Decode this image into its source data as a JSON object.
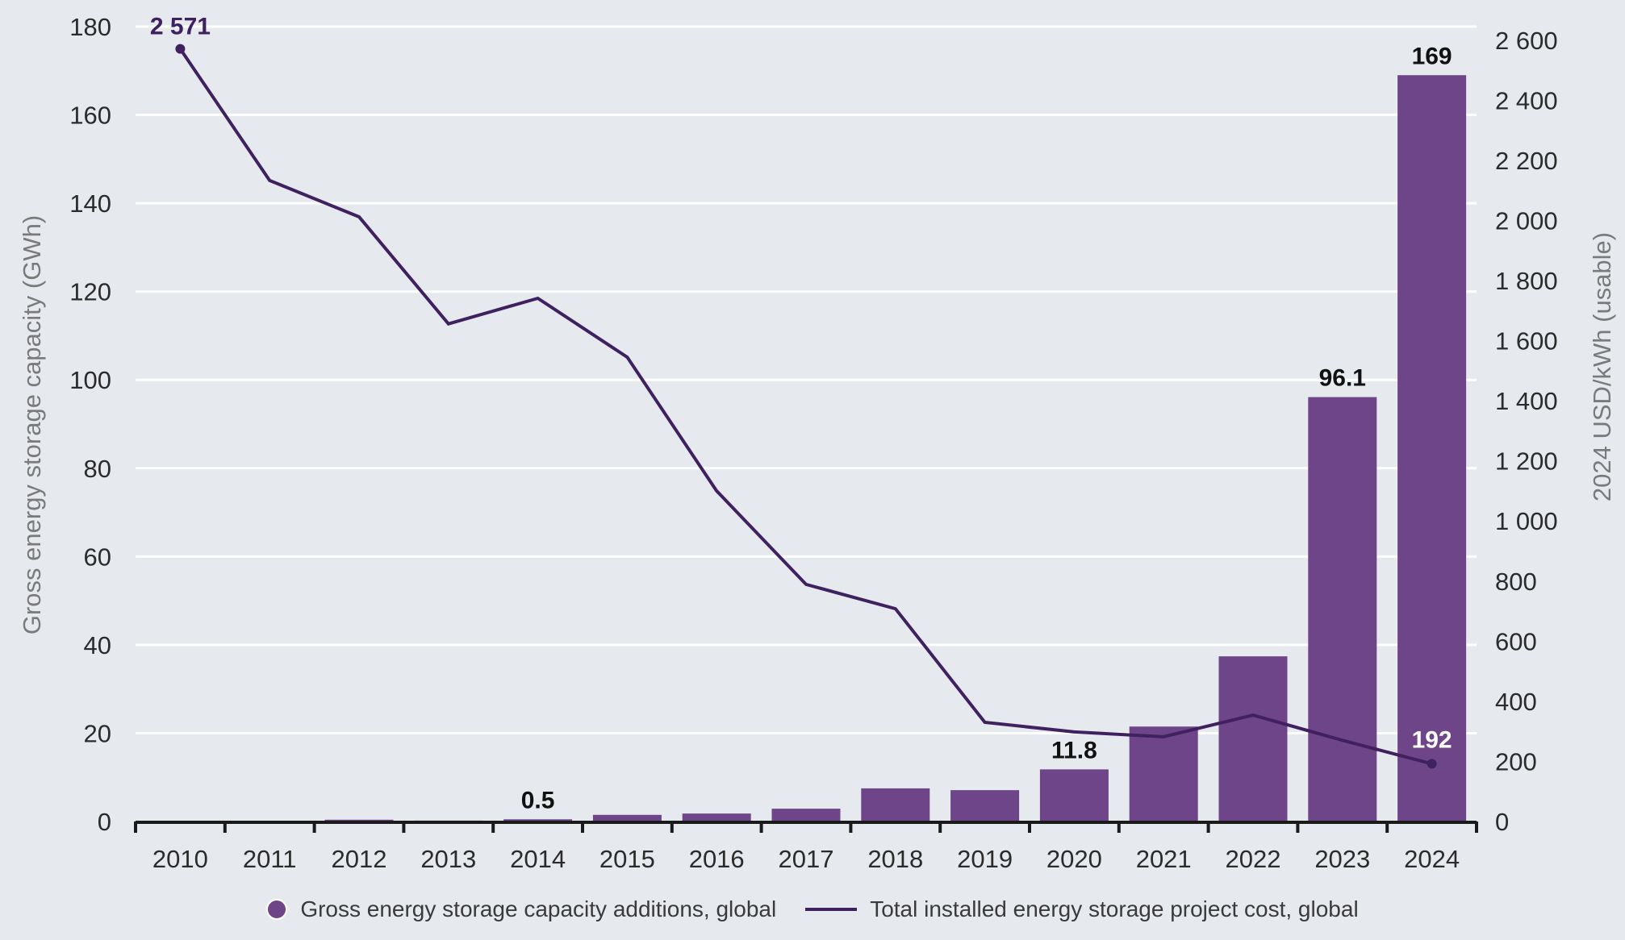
{
  "chart_data": {
    "type": "bar+line",
    "title": "",
    "categories": [
      "2010",
      "2011",
      "2012",
      "2013",
      "2014",
      "2015",
      "2016",
      "2017",
      "2018",
      "2019",
      "2020",
      "2021",
      "2022",
      "2023",
      "2024"
    ],
    "series": [
      {
        "name": "Gross energy storage capacity additions, global",
        "type": "bar",
        "axis": "left",
        "color": "#6f4589",
        "values": [
          0,
          0,
          0.4,
          0.2,
          0.5,
          1.5,
          1.8,
          2.9,
          7.5,
          7.1,
          11.8,
          21.5,
          37.4,
          96.1,
          169
        ]
      },
      {
        "name": "Total installed energy storage project cost, global",
        "type": "line",
        "axis": "right",
        "color": "#3f2160",
        "values": [
          2571,
          2133,
          2012,
          1656,
          1741,
          1545,
          1100,
          789,
          708,
          330,
          298,
          282,
          354,
          270,
          192
        ]
      }
    ],
    "data_labels": [
      {
        "series": 0,
        "index": 4,
        "text": "0.5",
        "color": "#111111"
      },
      {
        "series": 0,
        "index": 10,
        "text": "11.8",
        "color": "#111111"
      },
      {
        "series": 0,
        "index": 13,
        "text": "96.1",
        "color": "#111111"
      },
      {
        "series": 0,
        "index": 14,
        "text": "169",
        "color": "#111111"
      },
      {
        "series": 1,
        "index": 0,
        "text": "2 571",
        "color": "#3f2160"
      },
      {
        "series": 1,
        "index": 14,
        "text": "192",
        "color": "#ffffff"
      }
    ],
    "ylabel": "Gross energy storage capacity (GWh)",
    "ylabel_right": "2024 USD/kWh (usable)",
    "xlabel": "",
    "ylim": [
      0,
      180
    ],
    "ylim_right": [
      0,
      2645
    ],
    "yticks": [
      "0",
      "20",
      "40",
      "60",
      "80",
      "100",
      "120",
      "140",
      "160",
      "180"
    ],
    "yticks_values": [
      0,
      20,
      40,
      60,
      80,
      100,
      120,
      140,
      160,
      180
    ],
    "yticks_right": [
      "0",
      "200",
      "400",
      "600",
      "800",
      "1 000",
      "1 200",
      "1 400",
      "1 600",
      "1 800",
      "2 000",
      "2 200",
      "2 400",
      "2 600"
    ],
    "yticks_right_values": [
      0,
      200,
      400,
      600,
      800,
      1000,
      1200,
      1400,
      1600,
      1800,
      2000,
      2200,
      2400,
      2600
    ],
    "grid": true,
    "legend_position": "bottom-center",
    "background": "#e6e9ee"
  }
}
